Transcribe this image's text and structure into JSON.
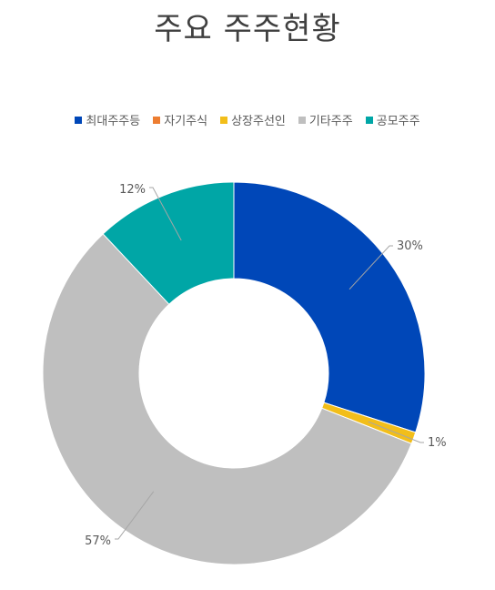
{
  "chart_data": {
    "type": "pie",
    "variant": "donut",
    "title": "주요 주주현황",
    "legend_position": "top",
    "categories": [
      "최대주주등",
      "자기주식",
      "상장주선인",
      "기타주주",
      "공모주주"
    ],
    "values": [
      30,
      0,
      1,
      57,
      12
    ],
    "labels": [
      "30%",
      "",
      "1%",
      "57%",
      "12%"
    ],
    "colors": [
      "#0047B8",
      "#ED7D31",
      "#F2BE1A",
      "#BFBFBF",
      "#00A6A6"
    ]
  }
}
